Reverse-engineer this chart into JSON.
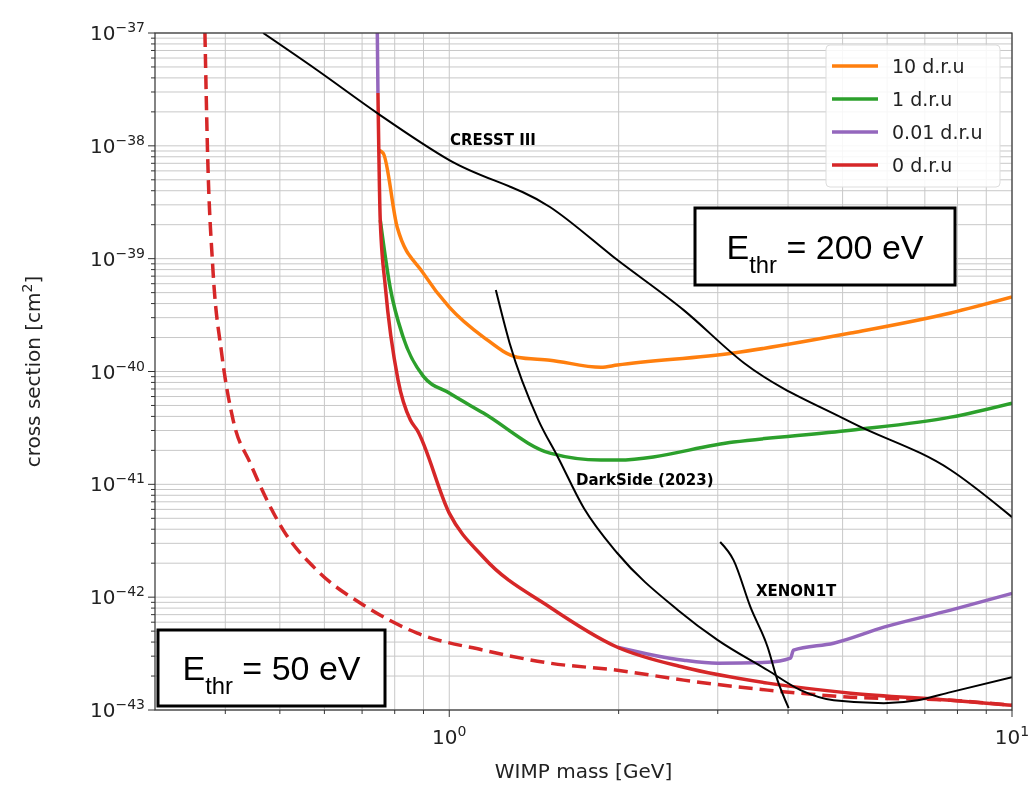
{
  "chart_data": {
    "type": "line",
    "xlabel": "WIMP mass [GeV]",
    "ylabel": "cross section [cm$^{2}$]",
    "log": "xy",
    "grid": true,
    "legend": "top right",
    "xlim": [
      0.3,
      10
    ],
    "ylim": [
      1e-43,
      1e-37
    ],
    "xticks": [
      {
        "value": 0.4,
        "label": null
      },
      {
        "value": 0.5,
        "label": null
      },
      {
        "value": 0.6,
        "label": null
      },
      {
        "value": 0.7,
        "label": null
      },
      {
        "value": 0.8,
        "label": null
      },
      {
        "value": 0.9,
        "label": null
      },
      {
        "value": 1,
        "label": "10$^{0}$"
      },
      {
        "value": 2,
        "label": null
      },
      {
        "value": 3,
        "label": null
      },
      {
        "value": 4,
        "label": null
      },
      {
        "value": 5,
        "label": null
      },
      {
        "value": 6,
        "label": null
      },
      {
        "value": 7,
        "label": null
      },
      {
        "value": 8,
        "label": null
      },
      {
        "value": 9,
        "label": null
      },
      {
        "value": 10,
        "label": "10$^{1}$"
      }
    ],
    "yticks": [
      {
        "value": 1e-43,
        "label": "10$^{−43}$"
      },
      {
        "value": 2e-43,
        "label": null
      },
      {
        "value": 3e-43,
        "label": null
      },
      {
        "value": 4e-43,
        "label": null
      },
      {
        "value": 5e-43,
        "label": null
      },
      {
        "value": 6e-43,
        "label": null
      },
      {
        "value": 7e-43,
        "label": null
      },
      {
        "value": 8e-43,
        "label": null
      },
      {
        "value": 9e-43,
        "label": null
      },
      {
        "value": 1e-42,
        "label": "10$^{−42}$"
      },
      {
        "value": 2e-42,
        "label": null
      },
      {
        "value": 3e-42,
        "label": null
      },
      {
        "value": 4e-42,
        "label": null
      },
      {
        "value": 5e-42,
        "label": null
      },
      {
        "value": 6e-42,
        "label": null
      },
      {
        "value": 7e-42,
        "label": null
      },
      {
        "value": 8e-42,
        "label": null
      },
      {
        "value": 9e-42,
        "label": null
      },
      {
        "value": 1e-41,
        "label": "10$^{−41}$"
      },
      {
        "value": 2e-41,
        "label": null
      },
      {
        "value": 3e-41,
        "label": null
      },
      {
        "value": 4e-41,
        "label": null
      },
      {
        "value": 5e-41,
        "label": null
      },
      {
        "value": 6e-41,
        "label": null
      },
      {
        "value": 7e-41,
        "label": null
      },
      {
        "value": 8e-41,
        "label": null
      },
      {
        "value": 9e-41,
        "label": null
      },
      {
        "value": 1e-40,
        "label": "10$^{−40}$"
      },
      {
        "value": 2e-40,
        "label": null
      },
      {
        "value": 3e-40,
        "label": null
      },
      {
        "value": 4e-40,
        "label": null
      },
      {
        "value": 5e-40,
        "label": null
      },
      {
        "value": 6e-40,
        "label": null
      },
      {
        "value": 7e-40,
        "label": null
      },
      {
        "value": 8e-40,
        "label": null
      },
      {
        "value": 9e-40,
        "label": null
      },
      {
        "value": 1e-39,
        "label": "10$^{−39}$"
      },
      {
        "value": 2e-39,
        "label": null
      },
      {
        "value": 3e-39,
        "label": null
      },
      {
        "value": 4e-39,
        "label": null
      },
      {
        "value": 5e-39,
        "label": null
      },
      {
        "value": 6e-39,
        "label": null
      },
      {
        "value": 7e-39,
        "label": null
      },
      {
        "value": 8e-39,
        "label": null
      },
      {
        "value": 9e-39,
        "label": null
      },
      {
        "value": 1e-38,
        "label": "10$^{−38}$"
      },
      {
        "value": 2e-38,
        "label": null
      },
      {
        "value": 3e-38,
        "label": null
      },
      {
        "value": 4e-38,
        "label": null
      },
      {
        "value": 5e-38,
        "label": null
      },
      {
        "value": 6e-38,
        "label": null
      },
      {
        "value": 7e-38,
        "label": null
      },
      {
        "value": 8e-38,
        "label": null
      },
      {
        "value": 9e-38,
        "label": null
      },
      {
        "value": 1e-37,
        "label": "10$^{−37}$"
      }
    ],
    "annotations": [
      "E$_{thr}$  = 200 eV",
      "E$_{thr}$ = 50 eV"
    ],
    "series": [
      {
        "name": "10 d.r.u",
        "color": "#ff7f0e",
        "x": [
          0.747,
          0.763,
          0.808,
          0.899,
          1.0,
          1.15,
          1.32,
          1.51,
          1.86,
          1.99,
          3.2,
          5.17,
          7.78,
          10
        ],
        "values": [
          9.18e-39,
          8.63e-39,
          1.91e-39,
          7.45e-40,
          3.72e-40,
          2.02e-40,
          1.34e-40,
          1.26e-40,
          1.09e-40,
          1.14e-40,
          1.46e-40,
          2.19e-40,
          3.3e-40,
          4.57e-40
        ]
      },
      {
        "name": "1 d.r.u",
        "color": "#2ca02c",
        "x": [
          0.754,
          0.785,
          0.828,
          0.899,
          1.0,
          1.15,
          1.51,
          1.86,
          1.99,
          3.2,
          5.17,
          7.78,
          10
        ],
        "values": [
          2.2e-39,
          5.6e-40,
          2.02e-40,
          9.1e-41,
          6.44e-41,
          4.28e-41,
          1.89e-41,
          1.64e-41,
          1.64e-41,
          2.37e-41,
          3.02e-41,
          3.94e-41,
          5.25e-41
        ]
      },
      {
        "name": "0.01 d.r.u",
        "color": "#9467bd",
        "x": [
          0.745,
          0.747,
          0.754,
          0.77,
          0.811,
          0.853,
          0.877,
          1.0,
          1.15,
          1.51,
          1.99,
          2.61,
          3.0,
          3.68,
          4.04,
          4.09,
          4.82,
          5.92,
          7.78,
          10
        ],
        "values": [
          1e-37,
          2.94e-38,
          null,
          null,
          null,
          null,
          null,
          null,
          null,
          null,
          3.6e-43,
          2.76e-43,
          2.6e-43,
          2.65e-43,
          2.88e-43,
          3.39e-43,
          3.91e-43,
          5.42e-43,
          7.67e-43,
          1.08e-42
        ]
      },
      {
        "name": "0 d.r.u",
        "color": "#d62728",
        "x": [
          0.747,
          0.754,
          0.77,
          0.811,
          0.853,
          0.877,
          1.0,
          1.15,
          1.51,
          1.99,
          2.61,
          3.68,
          5.17,
          7.78,
          10
        ],
        "values": [
          2.94e-38,
          2.2e-39,
          5.6e-40,
          8.39e-41,
          3.71e-41,
          3.02e-41,
          5.56e-42,
          2.26e-42,
          8.15e-43,
          3.6e-43,
          2.39e-43,
          1.73e-43,
          1.41e-43,
          1.22e-43,
          1.1e-43
        ]
      },
      {
        "color": "#d62728",
        "line_style": "dashed",
        "x": [
          0.368,
          0.372,
          0.38,
          0.394,
          0.413,
          0.443,
          0.507,
          0.582,
          0.714,
          0.877,
          1.15,
          1.51,
          1.99,
          2.61,
          3.68,
          5.17,
          7.78,
          10
        ],
        "values": [
          1e-37,
          8.63e-39,
          8.43e-40,
          1.46e-40,
          3.71e-41,
          1.54e-41,
          3.93e-42,
          1.73e-42,
          8.15e-43,
          4.8e-43,
          3.39e-43,
          2.6e-43,
          2.25e-43,
          1.84e-43,
          1.5e-43,
          1.3e-43,
          1.22e-43,
          1.1e-43
        ]
      },
      {
        "name": "CRESST III",
        "color": "#000000",
        "x": [
          0.467,
          0.582,
          0.745,
          1.0,
          1.51,
          1.99,
          2.61,
          3.34,
          5.17,
          7.78,
          10
        ],
        "values": [
          1e-37,
          4.7e-38,
          1.95e-38,
          7.48e-39,
          2.87e-39,
          9.72e-40,
          3.5e-40,
          1.19e-40,
          3.56e-41,
          1.34e-41,
          5.12e-42
        ]
      },
      {
        "name": "DarkSide (2023)",
        "color": "#000000",
        "x": [
          1.21,
          1.28,
          1.44,
          1.56,
          1.73,
          1.99,
          2.55,
          3.0,
          3.68,
          4.21,
          4.82,
          5.92,
          6.8,
          7.78,
          10
        ],
        "values": [
          5.27e-40,
          1.79e-40,
          3.71e-41,
          1.74e-41,
          6.29e-42,
          2.45e-42,
          7.67e-43,
          4.16e-43,
          2.25e-43,
          1.5e-43,
          1.22e-43,
          1.15e-43,
          1.22e-43,
          1.44e-43,
          1.95e-43
        ]
      },
      {
        "name": "XENON1T",
        "color": "#000000",
        "x": [
          3.03,
          3.2,
          3.43,
          3.68,
          3.83,
          4.01
        ],
        "values": [
          3.08e-42,
          2.13e-42,
          8.15e-43,
          3.6e-43,
          1.84e-43,
          1.04e-43
        ]
      }
    ]
  }
}
